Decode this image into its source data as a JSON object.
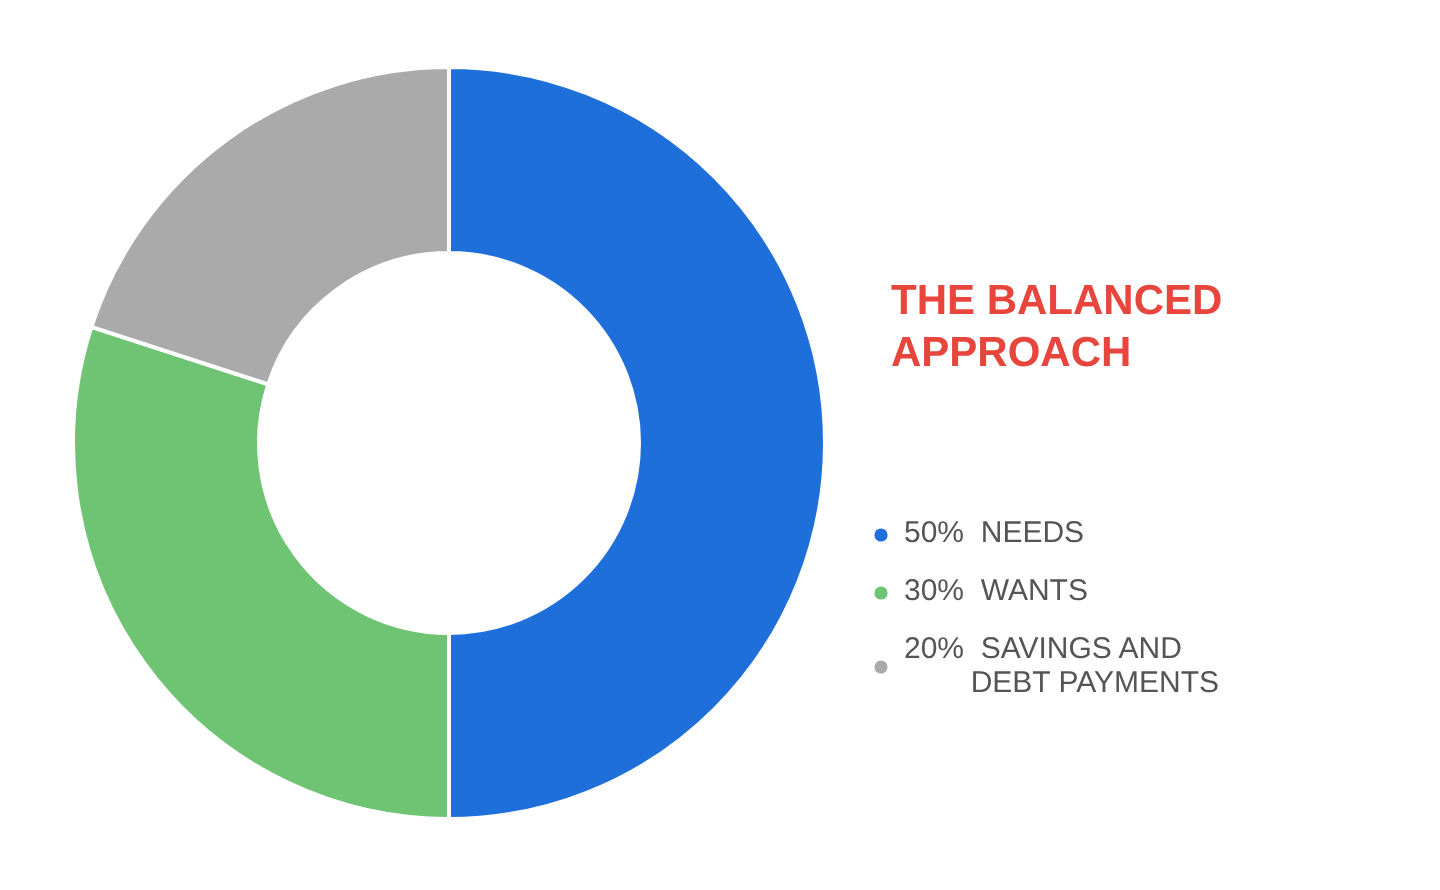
{
  "chart_data": {
    "type": "donut",
    "title": "THE BALANCED APPROACH",
    "categories": [
      "NEEDS",
      "WANTS",
      "SAVINGS AND DEBT PAYMENTS"
    ],
    "values": [
      50,
      30,
      20
    ],
    "value_labels": [
      "50%",
      "30%",
      "20%"
    ],
    "colors": [
      "#1f6fdb",
      "#6fc474",
      "#aaaaaa"
    ],
    "legend": "right"
  }
}
